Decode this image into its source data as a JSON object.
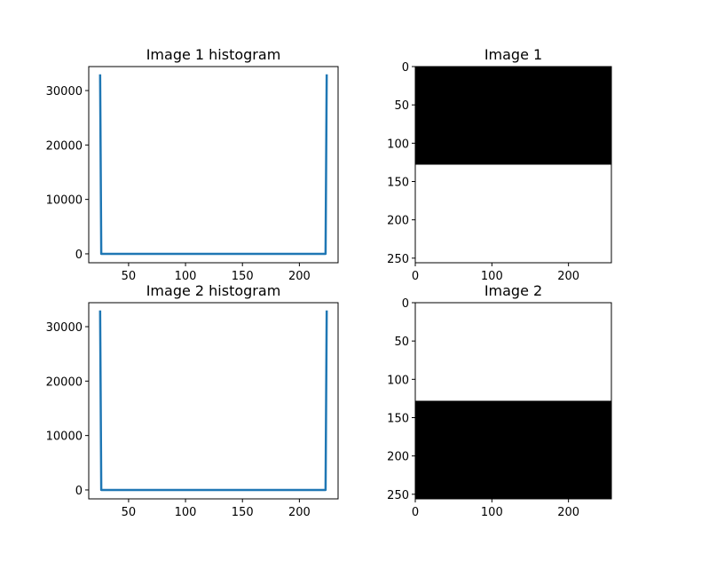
{
  "chart_data": [
    {
      "type": "line",
      "title": "Image 1 histogram",
      "xlabel": "",
      "ylabel": "",
      "xlim": [
        15,
        234
      ],
      "ylim": [
        -1638,
        34406
      ],
      "xticks": [
        50,
        100,
        150,
        200
      ],
      "yticks": [
        0,
        10000,
        20000,
        30000
      ],
      "grid": false,
      "color": "#1f77b4",
      "x": [
        25,
        26,
        50,
        100,
        150,
        200,
        223,
        224
      ],
      "y": [
        32768,
        0,
        0,
        0,
        0,
        0,
        0,
        32768
      ]
    },
    {
      "type": "image",
      "title": "Image 1",
      "xlim": [
        0,
        256
      ],
      "ylim": [
        256,
        0
      ],
      "xticks": [
        0,
        100,
        200
      ],
      "yticks": [
        0,
        50,
        100,
        150,
        200,
        250
      ],
      "grid": false,
      "bands": [
        {
          "row_from": 0,
          "row_to": 128,
          "color": "#000000"
        },
        {
          "row_from": 128,
          "row_to": 256,
          "color": "#ffffff"
        }
      ]
    },
    {
      "type": "line",
      "title": "Image 2 histogram",
      "xlabel": "",
      "ylabel": "",
      "xlim": [
        15,
        234
      ],
      "ylim": [
        -1638,
        34406
      ],
      "xticks": [
        50,
        100,
        150,
        200
      ],
      "yticks": [
        0,
        10000,
        20000,
        30000
      ],
      "grid": false,
      "color": "#1f77b4",
      "x": [
        25,
        26,
        50,
        100,
        150,
        200,
        223,
        224
      ],
      "y": [
        32768,
        0,
        0,
        0,
        0,
        0,
        0,
        32768
      ]
    },
    {
      "type": "image",
      "title": "Image 2",
      "xlim": [
        0,
        256
      ],
      "ylim": [
        256,
        0
      ],
      "xticks": [
        0,
        100,
        200
      ],
      "yticks": [
        0,
        50,
        100,
        150,
        200,
        250
      ],
      "grid": false,
      "bands": [
        {
          "row_from": 0,
          "row_to": 128,
          "color": "#ffffff"
        },
        {
          "row_from": 128,
          "row_to": 256,
          "color": "#000000"
        }
      ]
    }
  ]
}
